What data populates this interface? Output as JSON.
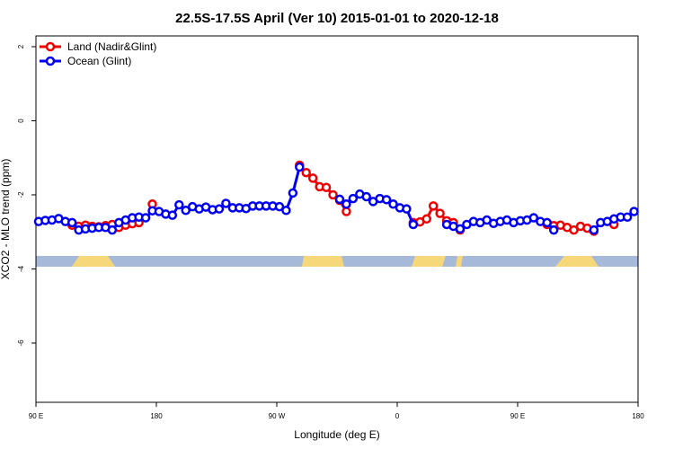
{
  "chart_data": {
    "type": "line",
    "title": "22.5S-17.5S April (Ver 10)   2015-01-01 to 2020-12-18",
    "x_label": "Longitude (deg E)",
    "y_label": "XCO2 - MLO trend (ppm)",
    "xlim": [
      90,
      540
    ],
    "xticks": [
      {
        "value": 90,
        "label": "90 E"
      },
      180,
      {
        "value": 270,
        "label": "90 W"
      },
      {
        "value": 360,
        "label": "0"
      },
      {
        "value": 450,
        "label": "90 E"
      },
      {
        "value": 540,
        "label": "180"
      }
    ],
    "ylim": [
      -7.6,
      2.29
    ],
    "yticks": [
      2,
      0,
      -2,
      -4,
      -6
    ],
    "legend": "top-left",
    "x": [
      92,
      97,
      102,
      107,
      112,
      117,
      122,
      127,
      132,
      137,
      142,
      147,
      152,
      157,
      162,
      167,
      172,
      177,
      182,
      187,
      192,
      197,
      202,
      207,
      212,
      217,
      222,
      227,
      232,
      237,
      242,
      247,
      252,
      257,
      262,
      267,
      272,
      277,
      282,
      287,
      292,
      297,
      302,
      307,
      312,
      317,
      322,
      327,
      332,
      337,
      342,
      347,
      352,
      357,
      362,
      367,
      372,
      377,
      382,
      387,
      392,
      397,
      402,
      407,
      412,
      417,
      422,
      427,
      432,
      437,
      442,
      447,
      452,
      457,
      462,
      467,
      472,
      477,
      482,
      487,
      492,
      497,
      502,
      507,
      512,
      517,
      522,
      527,
      532,
      537
    ],
    "series": [
      {
        "name": "Land (Nadir&Glint)",
        "color": "#ee0000",
        "values": [
          null,
          null,
          null,
          null,
          null,
          -2.82,
          -2.85,
          -2.82,
          -2.85,
          -2.86,
          -2.83,
          -2.8,
          -2.88,
          -2.82,
          -2.78,
          -2.75,
          null,
          -2.25,
          null,
          null,
          null,
          null,
          null,
          null,
          null,
          null,
          null,
          null,
          null,
          null,
          null,
          null,
          null,
          null,
          null,
          null,
          null,
          null,
          null,
          -1.2,
          -1.4,
          -1.55,
          -1.78,
          -1.8,
          -2.0,
          -2.15,
          -2.45,
          null,
          null,
          null,
          null,
          null,
          null,
          null,
          null,
          null,
          -2.75,
          -2.73,
          -2.65,
          -2.3,
          -2.5,
          -2.7,
          -2.75,
          -2.95,
          null,
          null,
          null,
          null,
          null,
          null,
          null,
          null,
          null,
          null,
          null,
          null,
          -2.8,
          -2.83,
          -2.82,
          -2.88,
          -2.95,
          -2.85,
          -2.9,
          -2.98,
          null,
          null,
          -2.8,
          null,
          null,
          null
        ]
      },
      {
        "name": "Ocean (Glint)",
        "color": "#0000ee",
        "values": [
          -2.72,
          -2.69,
          -2.68,
          -2.64,
          -2.72,
          -2.75,
          -2.95,
          -2.92,
          -2.9,
          -2.88,
          -2.88,
          -2.95,
          -2.75,
          -2.68,
          -2.62,
          -2.6,
          -2.62,
          -2.43,
          -2.45,
          -2.52,
          -2.55,
          -2.27,
          -2.42,
          -2.32,
          -2.38,
          -2.33,
          -2.4,
          -2.38,
          -2.23,
          -2.35,
          -2.35,
          -2.37,
          -2.3,
          -2.3,
          -2.3,
          -2.3,
          -2.32,
          -2.42,
          -1.95,
          -1.25,
          null,
          null,
          null,
          null,
          null,
          -2.12,
          -2.25,
          -2.1,
          -1.98,
          -2.05,
          -2.18,
          -2.1,
          -2.13,
          -2.25,
          -2.35,
          -2.38,
          -2.8,
          null,
          null,
          null,
          null,
          -2.8,
          -2.85,
          -2.92,
          -2.8,
          -2.72,
          -2.75,
          -2.68,
          -2.77,
          -2.72,
          -2.68,
          -2.75,
          -2.7,
          -2.68,
          -2.62,
          -2.72,
          -2.75,
          -2.95,
          null,
          null,
          null,
          null,
          null,
          -2.95,
          -2.75,
          -2.72,
          -2.65,
          -2.6,
          -2.6,
          -2.45
        ]
      }
    ]
  }
}
